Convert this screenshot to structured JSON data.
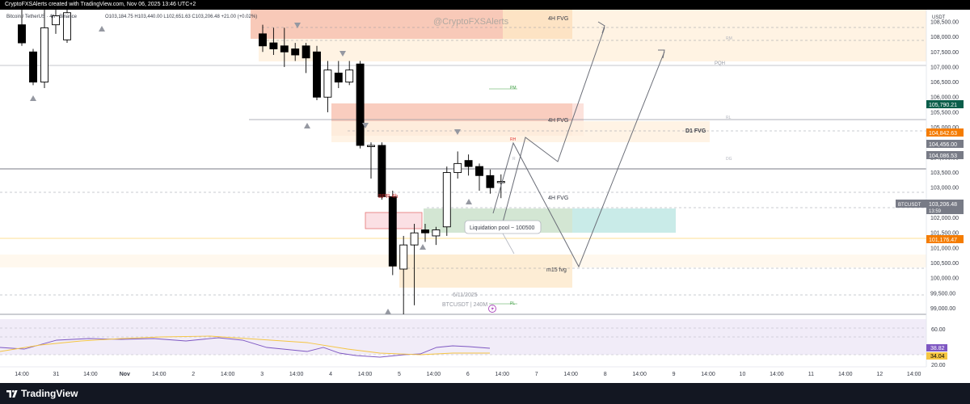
{
  "header": {
    "text": "CryptoFXSAlerts created with TradingView.com, Nov 06, 2025 13:46 UTC+2"
  },
  "symbol": {
    "label": "Bitcoin / TetherUS · 4h · Binance",
    "ohlc": "O103,184.75  H103,440.00  L102,651.63  C103,206.48  +21.00 (+0.02%)"
  },
  "watermark": "@CryptoFXSAlerts",
  "price_axis": {
    "currency": "USDT",
    "ticks": [
      "108,500.00",
      "108,000.00",
      "107,500.00",
      "107,000.00",
      "106,500.00",
      "106,000.00",
      "105,500.00",
      "105,000.00",
      "104,500.00",
      "104,000.00",
      "103,500.00",
      "103,000.00",
      "102,500.00",
      "102,000.00",
      "101,500.00",
      "101,000.00",
      "100,500.00",
      "100,000.00",
      "99,500.00",
      "99,000.00"
    ],
    "markers": [
      {
        "label": "105,790.21",
        "color": "#0b5e4a"
      },
      {
        "label": "104,842.63",
        "color": "#f57c00"
      },
      {
        "label": "104,456.00",
        "color": "#787b86"
      },
      {
        "label": "104,086.53",
        "color": "#787b86"
      },
      {
        "label": "BTCUSDT",
        "color": "#787b86"
      },
      {
        "label": "103,206.48",
        "color": "#787b86"
      },
      {
        "label": "13:59",
        "color": "#787b86"
      },
      {
        "label": "101,176.47",
        "color": "#f57c00"
      }
    ]
  },
  "zones": {
    "fvg_top": "4H FVG",
    "fvg_mid": "4H FVG",
    "d1_fvg": "D1 FVG",
    "fvg_low": "4H FVG",
    "bpr": "BPR 4h",
    "m15": "m15 fvg",
    "liquidation": "Liquidation pool ~ 100500",
    "level_pqh": "PQH"
  },
  "chart_info": {
    "date": "6/11/2025",
    "symbol_tf": "BTCUSDT | 240M"
  },
  "rsi": {
    "ticks": [
      "60.00",
      "20.00"
    ],
    "value1": "38.82",
    "value2": "34.04"
  },
  "time_axis": [
    "14:00",
    "31",
    "14:00",
    "Nov",
    "14:00",
    "2",
    "14:00",
    "3",
    "14:00",
    "4",
    "14:00",
    "5",
    "14:00",
    "6",
    "14:00",
    "7",
    "14:00",
    "8",
    "14:00",
    "9",
    "14:00",
    "10",
    "14:00",
    "11",
    "14:00",
    "12",
    "14:00"
  ],
  "footer": {
    "brand": "TradingView"
  },
  "colors": {
    "bull_body": "#ffffff",
    "bear_body": "#000000",
    "fvg_red": "#f8c4b4",
    "fvg_orange": "#fde9cf",
    "fvg_green": "#cfe6d4",
    "fvg_teal": "#c9ebe8",
    "rsi_band": "#ede7f6",
    "rsi_line": "#7e57c2",
    "rsi_ma": "#f5c542"
  },
  "chart_data": {
    "type": "candlestick",
    "ylim": [
      98800,
      108900
    ],
    "candles": [
      {
        "o": 108400,
        "h": 108900,
        "l": 107700,
        "c": 107800
      },
      {
        "o": 107500,
        "h": 107600,
        "l": 106400,
        "c": 106500
      },
      {
        "o": 106500,
        "h": 108900,
        "l": 106300,
        "c": 108300
      },
      {
        "o": 108400,
        "h": 108900,
        "l": 108100,
        "c": 108700
      },
      {
        "o": 107900,
        "h": 108900,
        "l": 107800,
        "c": 108800
      },
      {
        "o": 108100,
        "h": 108400,
        "l": 107500,
        "c": 107700
      },
      {
        "o": 107800,
        "h": 108300,
        "l": 107400,
        "c": 107600
      },
      {
        "o": 107700,
        "h": 108300,
        "l": 107000,
        "c": 107500
      },
      {
        "o": 107600,
        "h": 107800,
        "l": 107200,
        "c": 107400
      },
      {
        "o": 107700,
        "h": 107800,
        "l": 106800,
        "c": 107300
      },
      {
        "o": 107500,
        "h": 107700,
        "l": 105900,
        "c": 106000
      },
      {
        "o": 106000,
        "h": 107200,
        "l": 105500,
        "c": 106900
      },
      {
        "o": 106800,
        "h": 107200,
        "l": 106300,
        "c": 106500
      },
      {
        "o": 106500,
        "h": 107200,
        "l": 106400,
        "c": 106900
      },
      {
        "o": 107100,
        "h": 107200,
        "l": 104300,
        "c": 104400
      },
      {
        "o": 104400,
        "h": 104500,
        "l": 103300,
        "c": 104400
      },
      {
        "o": 104400,
        "h": 104500,
        "l": 102600,
        "c": 102700
      },
      {
        "o": 102700,
        "h": 102900,
        "l": 100100,
        "c": 100400
      },
      {
        "o": 100300,
        "h": 101400,
        "l": 98800,
        "c": 101100
      },
      {
        "o": 101100,
        "h": 101800,
        "l": 99100,
        "c": 101500
      },
      {
        "o": 101600,
        "h": 101800,
        "l": 101200,
        "c": 101500
      },
      {
        "o": 101400,
        "h": 101700,
        "l": 101100,
        "c": 101600
      },
      {
        "o": 101700,
        "h": 103700,
        "l": 101400,
        "c": 103500
      },
      {
        "o": 103500,
        "h": 104200,
        "l": 103300,
        "c": 103800
      },
      {
        "o": 103900,
        "h": 104100,
        "l": 103400,
        "c": 103700
      },
      {
        "o": 103700,
        "h": 103800,
        "l": 102900,
        "c": 103400
      },
      {
        "o": 103400,
        "h": 103600,
        "l": 102800,
        "c": 103000
      },
      {
        "o": 103185,
        "h": 103440,
        "l": 102652,
        "c": 103206
      }
    ]
  }
}
